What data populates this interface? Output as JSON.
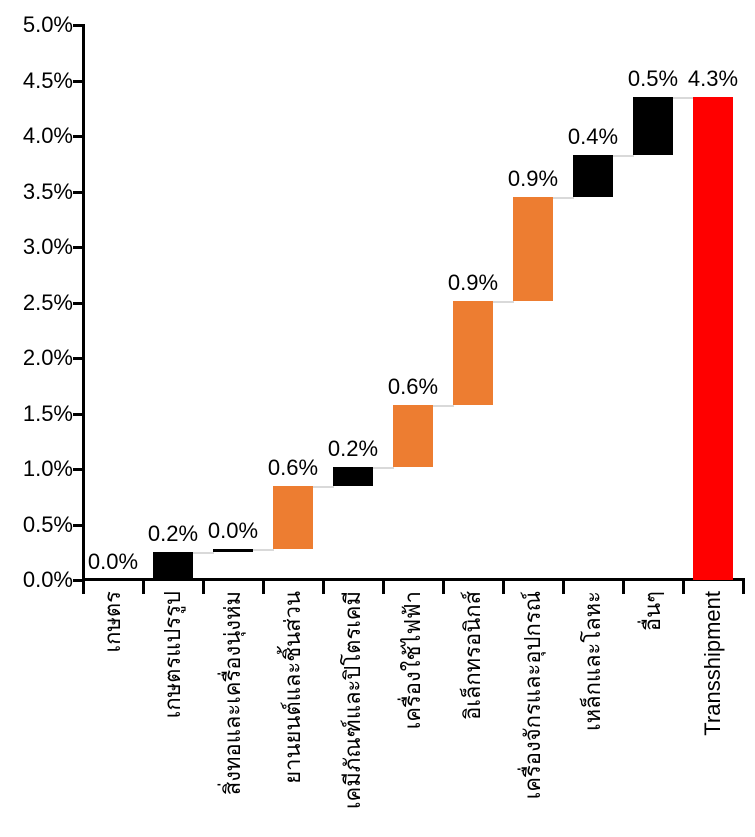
{
  "chart_data": {
    "type": "bar",
    "subtype": "waterfall",
    "title": "",
    "xlabel": "",
    "ylabel": "",
    "ylim": [
      0,
      5
    ],
    "ytick_step_pct": 0.5,
    "ytick_labels": [
      "0.0%",
      "0.5%",
      "1.0%",
      "1.5%",
      "2.0%",
      "2.5%",
      "3.0%",
      "3.5%",
      "4.0%",
      "4.5%",
      "5.0%"
    ],
    "grid": false,
    "legend": false,
    "categories": [
      "เกษตร",
      "เกษตรแปรรูป",
      "สิ่งทอและเครื่องนุ่งห่ม",
      "ยานยนต์และชิ้นส่วน",
      "เคมีภัณฑ์และปิโตรเคมี",
      "เครื่องใช้ไฟฟ้า",
      "อิเล็กทรอนิกส์",
      "เครื่องจักรและอุปกรณ์",
      "เหล็กและโลหะ",
      "อื่นๆ",
      "Transshipment"
    ],
    "bars": [
      {
        "category": "เกษตร",
        "label": "0.0%",
        "start": 0.0,
        "end": 0.0,
        "color": "black"
      },
      {
        "category": "เกษตรแปรรูป",
        "label": "0.2%",
        "start": 0.0,
        "end": 0.25,
        "color": "black"
      },
      {
        "category": "สิ่งทอและเครื่องนุ่งห่ม",
        "label": "0.0%",
        "start": 0.25,
        "end": 0.28,
        "color": "black"
      },
      {
        "category": "ยานยนต์และชิ้นส่วน",
        "label": "0.6%",
        "start": 0.28,
        "end": 0.85,
        "color": "orange"
      },
      {
        "category": "เคมีภัณฑ์และปิโตรเคมี",
        "label": "0.2%",
        "start": 0.85,
        "end": 1.02,
        "color": "black"
      },
      {
        "category": "เครื่องใช้ไฟฟ้า",
        "label": "0.6%",
        "start": 1.02,
        "end": 1.58,
        "color": "orange"
      },
      {
        "category": "อิเล็กทรอนิกส์",
        "label": "0.9%",
        "start": 1.58,
        "end": 2.51,
        "color": "orange"
      },
      {
        "category": "เครื่องจักรและอุปกรณ์",
        "label": "0.9%",
        "start": 2.51,
        "end": 3.45,
        "color": "orange"
      },
      {
        "category": "เหล็กและโลหะ",
        "label": "0.4%",
        "start": 3.45,
        "end": 3.83,
        "color": "black"
      },
      {
        "category": "อื่นๆ",
        "label": "0.5%",
        "start": 3.83,
        "end": 4.35,
        "color": "black"
      },
      {
        "category": "Transshipment",
        "label": "4.3%",
        "start": 0.0,
        "end": 4.35,
        "color": "red"
      }
    ],
    "colors": {
      "black": "#000000",
      "orange": "#ED7D31",
      "red": "#FF0000",
      "connector": "#D9D9D9",
      "axis": "#000000",
      "text": "#000000",
      "background": "#FFFFFF"
    }
  }
}
